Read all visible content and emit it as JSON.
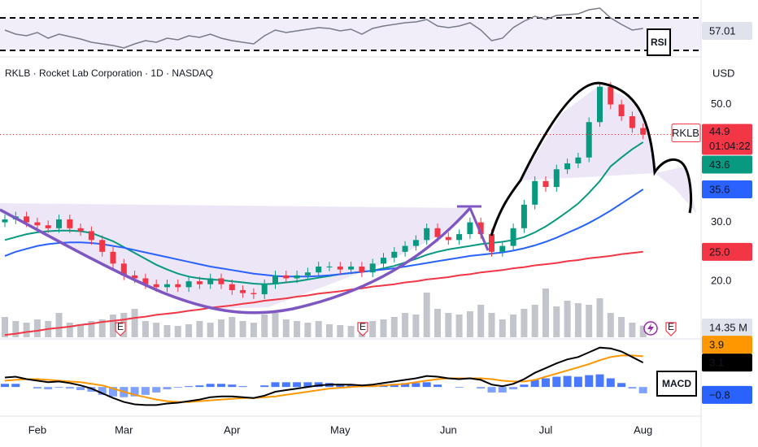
{
  "chart_data": [
    {
      "type": "candlestick",
      "title": "RKLB · Rocket Lab Corporation · 1D · NASDAQ",
      "currency": "USD",
      "symbol": "RKLB",
      "countdown": "01:04:22",
      "categories": [
        null,
        null,
        null,
        "Feb",
        null,
        null,
        null,
        null,
        null,
        null,
        null,
        "Mar",
        null,
        null,
        null,
        null,
        null,
        null,
        null,
        null,
        null,
        "Apr",
        null,
        null,
        null,
        null,
        null,
        null,
        null,
        null,
        null,
        "May",
        null,
        null,
        null,
        null,
        null,
        null,
        null,
        null,
        null,
        "Jun",
        null,
        null,
        null,
        null,
        null,
        null,
        null,
        null,
        "Jul",
        null,
        null,
        null,
        null,
        null,
        null,
        null,
        null,
        "Aug"
      ],
      "open": [
        30,
        30.5,
        31,
        30,
        29.5,
        29,
        30.5,
        29,
        28.5,
        27,
        25,
        23,
        21,
        20.5,
        19.5,
        19,
        19.5,
        19,
        20,
        19.5,
        20.5,
        19.5,
        18.5,
        18,
        17.8,
        19.5,
        21,
        20.5,
        21,
        21.5,
        22.5,
        22.5,
        22,
        22.5,
        21.5,
        23,
        24,
        25,
        26,
        27,
        29,
        27.5,
        27,
        28,
        30,
        28,
        25,
        26,
        29,
        33,
        37,
        36,
        39,
        40,
        41,
        47,
        53,
        50,
        48,
        46
      ],
      "high": [
        31.3,
        31.8,
        31.8,
        30.8,
        30.3,
        31.3,
        31.3,
        29.8,
        29.3,
        27.8,
        25.8,
        23.8,
        21.8,
        21.3,
        20.3,
        20.3,
        20.3,
        20.8,
        20.8,
        21.3,
        21.3,
        20.3,
        19.3,
        18.8,
        20.3,
        21.8,
        21.8,
        21.8,
        22.3,
        23.3,
        23.3,
        23.3,
        23.3,
        23.3,
        23.8,
        24.8,
        25.8,
        26.8,
        27.8,
        29.8,
        29.8,
        28.3,
        28.8,
        30.8,
        30.8,
        28.8,
        26.8,
        29.8,
        33.8,
        37.8,
        37.8,
        39.8,
        40.8,
        41.8,
        47.8,
        53.8,
        53.8,
        50.8,
        48.8,
        46.8
      ],
      "low": [
        29.2,
        29.7,
        29.2,
        28.7,
        28.2,
        28.2,
        28.2,
        27.7,
        26.2,
        24.2,
        22.2,
        20.2,
        19.7,
        18.7,
        18.2,
        18.2,
        18.2,
        18.2,
        18.7,
        18.7,
        18.7,
        17.7,
        17.2,
        17.0,
        17.0,
        18.7,
        19.7,
        19.7,
        20.2,
        20.7,
        21.7,
        21.2,
        21.2,
        20.7,
        20.7,
        22.2,
        23.2,
        24.2,
        25.2,
        26.2,
        26.7,
        26.2,
        26.2,
        27.2,
        27.2,
        24.2,
        24.2,
        25.2,
        28.2,
        32.2,
        35.2,
        35.2,
        38.2,
        39.2,
        40.2,
        46.2,
        49.2,
        47.2,
        45.2,
        44.1
      ],
      "close": [
        30.5,
        31,
        30,
        29.5,
        29,
        30.5,
        29,
        28.5,
        27,
        25,
        23,
        21,
        20.5,
        19.5,
        19,
        19.5,
        19,
        20,
        19.5,
        20.5,
        19.5,
        18.5,
        18,
        17.8,
        19.5,
        21,
        20.5,
        21,
        21.5,
        22.5,
        22.5,
        22,
        22.5,
        21.5,
        23,
        24,
        25,
        26,
        27,
        29,
        27.5,
        27,
        28,
        30,
        28,
        25,
        26,
        29,
        33,
        37,
        36,
        39,
        40,
        41,
        47,
        53,
        50,
        48,
        46,
        44.9
      ],
      "up_color": "#089981",
      "down_color": "#f23645",
      "lines": [
        {
          "color": "#089981",
          "values": [
            27,
            27.5,
            28,
            28.3,
            28.5,
            28.6,
            28.6,
            28.5,
            28.2,
            27.5,
            26.8,
            25.8,
            24.8,
            23.8,
            22.8,
            22,
            21.3,
            20.8,
            20.5,
            20.3,
            20.2,
            20,
            19.8,
            19.6,
            19.5,
            19.6,
            19.8,
            20,
            20.3,
            20.6,
            20.9,
            21.2,
            21.4,
            21.6,
            21.8,
            22.2,
            22.6,
            23.2,
            23.8,
            24.5,
            25,
            25.4,
            25.7,
            26,
            26.3,
            26.5,
            26.7,
            27,
            27.5,
            28.3,
            29.3,
            30.5,
            31.8,
            33.2,
            35,
            37,
            39.5,
            41,
            42.4,
            43.6
          ]
        },
        {
          "color": "#2962ff",
          "values": [
            24.3,
            25,
            25.5,
            26,
            26.3,
            26.5,
            26.6,
            26.6,
            26.5,
            26.3,
            26,
            25.7,
            25.3,
            24.9,
            24.5,
            24.1,
            23.7,
            23.3,
            22.9,
            22.5,
            22.2,
            21.9,
            21.6,
            21.3,
            21.1,
            20.9,
            20.8,
            20.8,
            20.8,
            20.9,
            21,
            21.2,
            21.4,
            21.6,
            21.8,
            22,
            22.2,
            22.5,
            22.8,
            23.1,
            23.4,
            23.7,
            24,
            24.3,
            24.5,
            24.7,
            24.9,
            25.2,
            25.6,
            26.1,
            26.7,
            27.4,
            28.2,
            29,
            29.9,
            30.9,
            32,
            33.2,
            34.4,
            35.6
          ]
        },
        {
          "color": "#f23645",
          "last_label": "25.0",
          "values": [
            10.9,
            11.1,
            11.4,
            11.6,
            11.9,
            12.1,
            12.3,
            12.6,
            12.8,
            13.1,
            13.3,
            13.5,
            13.8,
            14.0,
            14.3,
            14.5,
            14.7,
            15.0,
            15.2,
            15.5,
            15.7,
            15.9,
            16.2,
            16.4,
            16.7,
            16.9,
            17.1,
            17.4,
            17.6,
            17.9,
            18.1,
            18.3,
            18.6,
            18.8,
            19.1,
            19.3,
            19.5,
            19.8,
            20.0,
            20.3,
            20.5,
            20.7,
            21.0,
            21.2,
            21.5,
            21.7,
            21.9,
            22.2,
            22.4,
            22.7,
            22.9,
            23.1,
            23.4,
            23.6,
            23.9,
            24.1,
            24.3,
            24.6,
            24.8,
            25.0
          ]
        }
      ],
      "ylim": [
        10.5,
        56
      ],
      "yticks": [
        {
          "value": 20,
          "label": "20.0"
        },
        {
          "value": 30,
          "label": "30.0"
        },
        {
          "value": 50,
          "label": "50.0"
        }
      ]
    },
    {
      "type": "line",
      "label": "RSI",
      "color": "#787b86",
      "values": [
        55,
        50,
        48,
        52,
        45,
        50,
        47,
        44,
        40,
        38,
        36,
        33,
        38,
        42,
        40,
        45,
        43,
        48,
        46,
        50,
        45,
        42,
        40,
        38,
        48,
        55,
        52,
        54,
        56,
        58,
        57,
        54,
        56,
        50,
        57,
        60,
        62,
        64,
        65,
        68,
        60,
        58,
        60,
        64,
        55,
        42,
        45,
        58,
        66,
        72,
        68,
        73,
        74,
        75,
        80,
        82,
        70,
        62,
        55,
        57.01
      ],
      "ylim": [
        27,
        92
      ],
      "levels": [
        30,
        70
      ]
    },
    {
      "type": "bar",
      "color": "#c3c5cc",
      "last_label": "14.35 M",
      "annotations": [
        "E",
        "E",
        "E"
      ],
      "values": [
        25,
        20,
        18,
        22,
        20,
        30,
        18,
        16,
        20,
        22,
        28,
        30,
        35,
        20,
        18,
        15,
        14,
        16,
        20,
        18,
        22,
        25,
        20,
        18,
        28,
        30,
        22,
        20,
        18,
        20,
        16,
        15,
        14,
        16,
        20,
        22,
        25,
        30,
        28,
        55,
        35,
        30,
        28,
        32,
        40,
        30,
        22,
        28,
        35,
        40,
        60,
        38,
        45,
        42,
        40,
        48,
        30,
        25,
        18,
        14.35
      ],
      "ylim": [
        0,
        80
      ]
    },
    {
      "type": "macd",
      "label": "MACD",
      "macd": {
        "color": "#000000",
        "values": [
          1.2,
          1.3,
          1.0,
          0.8,
          0.6,
          0.7,
          0.5,
          0.2,
          -0.2,
          -0.8,
          -1.4,
          -1.9,
          -2.2,
          -2.3,
          -2.3,
          -2.1,
          -2.0,
          -1.8,
          -1.6,
          -1.3,
          -1.2,
          -1.2,
          -1.3,
          -1.4,
          -1.1,
          -0.6,
          -0.4,
          -0.2,
          0,
          0.2,
          0.3,
          0.3,
          0.3,
          0.2,
          0.3,
          0.5,
          0.7,
          0.9,
          1.1,
          1.4,
          1.3,
          1.1,
          1.0,
          1.1,
          0.9,
          0.3,
          0.1,
          0.4,
          1.0,
          1.8,
          2.4,
          3.0,
          3.5,
          3.8,
          4.4,
          5.0,
          4.9,
          4.5,
          3.8,
          3.1
        ]
      },
      "signal": {
        "color": "#ff9800",
        "values": [
          0.8,
          0.9,
          1.0,
          1.0,
          0.9,
          0.8,
          0.7,
          0.6,
          0.4,
          0.2,
          -0.2,
          -0.6,
          -1.0,
          -1.3,
          -1.6,
          -1.8,
          -1.9,
          -1.9,
          -1.8,
          -1.7,
          -1.6,
          -1.5,
          -1.4,
          -1.4,
          -1.3,
          -1.2,
          -1.0,
          -0.8,
          -0.6,
          -0.4,
          -0.2,
          -0.1,
          0,
          0.1,
          0.1,
          0.2,
          0.3,
          0.4,
          0.6,
          0.8,
          1.0,
          1.1,
          1.1,
          1.1,
          1.1,
          1.0,
          0.8,
          0.7,
          0.7,
          0.9,
          1.3,
          1.7,
          2.1,
          2.5,
          2.9,
          3.4,
          3.8,
          4.0,
          4.0,
          3.9
        ]
      },
      "histogram": {
        "color": "#2962ff",
        "last_label": "−0.8",
        "values": [
          0.4,
          0.4,
          0,
          -0.2,
          -0.3,
          -0.1,
          -0.2,
          -0.4,
          -0.6,
          -1.0,
          -1.2,
          -1.3,
          -1.2,
          -1.0,
          -0.7,
          -0.3,
          -0.1,
          0.1,
          0.2,
          0.4,
          0.4,
          0.3,
          0.1,
          0,
          0.2,
          0.6,
          0.6,
          0.6,
          0.6,
          0.6,
          0.5,
          0.4,
          0.3,
          0.1,
          0.2,
          0.3,
          0.4,
          0.5,
          0.5,
          0.6,
          0.3,
          0,
          -0.1,
          0,
          -0.2,
          -0.7,
          -0.7,
          -0.3,
          0.3,
          0.9,
          1.1,
          1.3,
          1.4,
          1.3,
          1.5,
          1.6,
          1.1,
          0.5,
          -0.2,
          -0.8
        ]
      },
      "ylim": [
        -3.7,
        6
      ]
    }
  ]
}
